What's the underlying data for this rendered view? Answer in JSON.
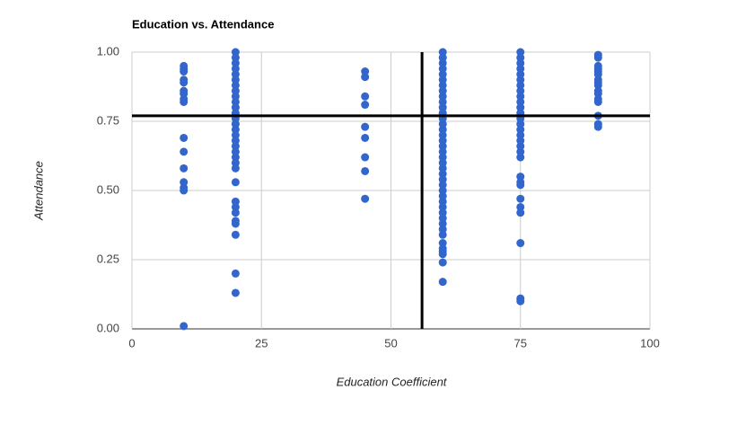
{
  "chart_data": {
    "type": "scatter",
    "title": "Education vs. Attendance",
    "x_label": "Education Coefficient",
    "y_label": "Attendance",
    "xlim": [
      0,
      100
    ],
    "xticks": [
      0,
      25,
      50,
      75,
      100
    ],
    "ylim": [
      0,
      1
    ],
    "yticks": [
      {
        "value": 0,
        "label": "0.00"
      },
      {
        "value": 0.25,
        "label": "0.25"
      },
      {
        "value": 0.5,
        "label": "0.50"
      },
      {
        "value": 0.75,
        "label": "0.75"
      },
      {
        "value": 1,
        "label": "1.00"
      }
    ],
    "grid": true,
    "color": "#3366cc",
    "vline": 56,
    "hline": 0.77,
    "line_color": "#000000",
    "x": [
      10,
      10,
      10,
      10,
      10,
      10,
      10,
      10,
      10,
      10,
      10,
      10,
      10,
      10,
      10,
      10,
      20,
      20,
      20,
      20,
      20,
      20,
      20,
      20,
      20,
      20,
      20,
      20,
      20,
      20,
      20,
      20,
      20,
      20,
      20,
      20,
      20,
      20,
      20,
      20,
      20,
      20,
      20,
      20,
      20,
      20,
      20,
      45,
      45,
      45,
      45,
      45,
      45,
      45,
      45,
      45,
      60,
      60,
      60,
      60,
      60,
      60,
      60,
      60,
      60,
      60,
      60,
      60,
      60,
      60,
      60,
      60,
      60,
      60,
      60,
      60,
      60,
      60,
      60,
      60,
      60,
      60,
      60,
      60,
      60,
      60,
      60,
      60,
      60,
      60,
      60,
      60,
      60,
      60,
      60,
      60,
      75,
      75,
      75,
      75,
      75,
      75,
      75,
      75,
      75,
      75,
      75,
      75,
      75,
      75,
      75,
      75,
      75,
      75,
      75,
      75,
      75,
      75,
      75,
      75,
      75,
      75,
      75,
      75,
      75,
      90,
      90,
      90,
      90,
      90,
      90,
      90,
      90,
      90,
      90,
      90,
      90,
      90,
      90,
      90,
      90
    ],
    "y": [
      0.95,
      0.94,
      0.93,
      0.9,
      0.89,
      0.86,
      0.85,
      0.83,
      0.82,
      0.69,
      0.64,
      0.58,
      0.53,
      0.51,
      0.5,
      0.01,
      1,
      0.98,
      0.96,
      0.94,
      0.92,
      0.9,
      0.88,
      0.86,
      0.84,
      0.82,
      0.8,
      0.78,
      0.76,
      0.74,
      0.72,
      0.7,
      0.68,
      0.66,
      0.64,
      0.62,
      0.6,
      0.58,
      0.53,
      0.46,
      0.44,
      0.42,
      0.39,
      0.38,
      0.34,
      0.2,
      0.13,
      0.93,
      0.91,
      0.84,
      0.81,
      0.73,
      0.69,
      0.62,
      0.57,
      0.47,
      1,
      0.98,
      0.96,
      0.94,
      0.92,
      0.9,
      0.88,
      0.86,
      0.84,
      0.82,
      0.8,
      0.78,
      0.76,
      0.74,
      0.72,
      0.7,
      0.68,
      0.66,
      0.64,
      0.62,
      0.6,
      0.58,
      0.56,
      0.54,
      0.52,
      0.5,
      0.48,
      0.46,
      0.44,
      0.42,
      0.4,
      0.38,
      0.36,
      0.34,
      0.31,
      0.29,
      0.28,
      0.27,
      0.24,
      0.17,
      1,
      0.98,
      0.96,
      0.94,
      0.92,
      0.9,
      0.88,
      0.86,
      0.84,
      0.82,
      0.8,
      0.78,
      0.76,
      0.74,
      0.72,
      0.7,
      0.68,
      0.66,
      0.64,
      0.62,
      0.55,
      0.53,
      0.52,
      0.47,
      0.44,
      0.42,
      0.31,
      0.11,
      0.1,
      0.99,
      0.98,
      0.95,
      0.94,
      0.93,
      0.92,
      0.9,
      0.89,
      0.88,
      0.86,
      0.85,
      0.83,
      0.82,
      0.77,
      0.74,
      0.73
    ]
  }
}
